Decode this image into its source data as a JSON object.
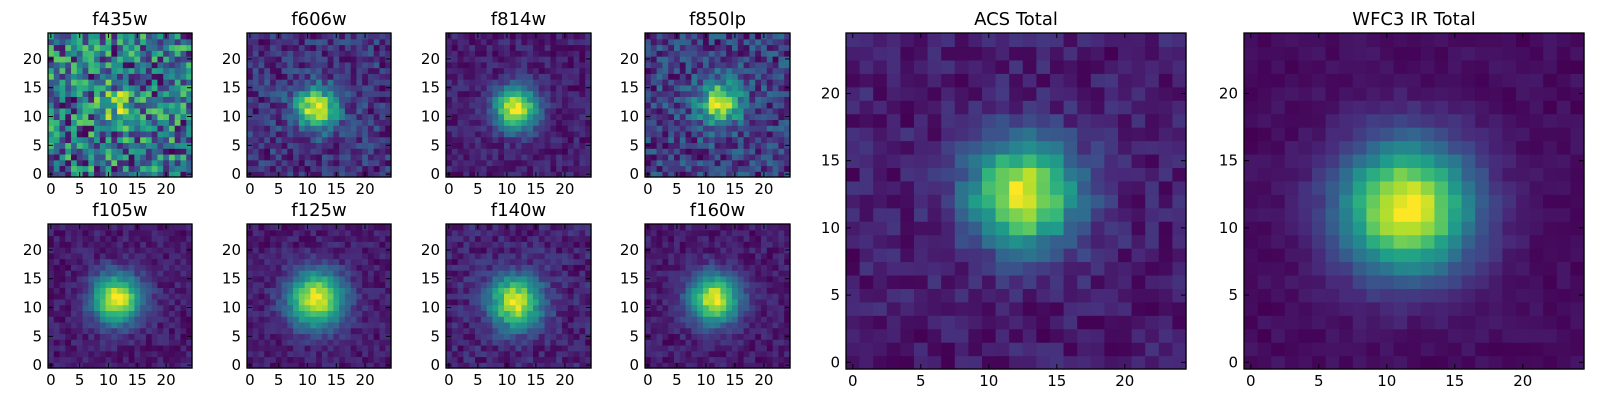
{
  "colormap": "viridis",
  "chart_data": [
    {
      "type": "heatmap",
      "title": "f435w",
      "size": 25,
      "xticks": [
        0,
        5,
        10,
        15,
        20
      ],
      "yticks": [
        0,
        5,
        10,
        15,
        20
      ],
      "xlim": [
        -0.5,
        24.5
      ],
      "ylim": [
        -0.5,
        24.5
      ],
      "grid": false,
      "peak": {
        "x": 12,
        "y": 12,
        "width": 2.5,
        "amplitude": 0.45
      },
      "background": 0.45,
      "noise": 0.55,
      "seed": 11
    },
    {
      "type": "heatmap",
      "title": "f606w",
      "size": 25,
      "xticks": [
        0,
        5,
        10,
        15,
        20
      ],
      "yticks": [
        0,
        5,
        10,
        15,
        20
      ],
      "xlim": [
        -0.5,
        24.5
      ],
      "ylim": [
        -0.5,
        24.5
      ],
      "grid": false,
      "peak": {
        "x": 11.5,
        "y": 11.5,
        "width": 2.6,
        "amplitude": 0.75
      },
      "background": 0.1,
      "noise": 0.14,
      "seed": 21
    },
    {
      "type": "heatmap",
      "title": "f814w",
      "size": 25,
      "xticks": [
        0,
        5,
        10,
        15,
        20
      ],
      "yticks": [
        0,
        5,
        10,
        15,
        20
      ],
      "xlim": [
        -0.5,
        24.5
      ],
      "ylim": [
        -0.5,
        24.5
      ],
      "grid": false,
      "peak": {
        "x": 11.5,
        "y": 11.5,
        "width": 2.6,
        "amplitude": 0.85
      },
      "background": 0.12,
      "noise": 0.08,
      "seed": 31
    },
    {
      "type": "heatmap",
      "title": "f850lp",
      "size": 25,
      "xticks": [
        0,
        5,
        10,
        15,
        20
      ],
      "yticks": [
        0,
        5,
        10,
        15,
        20
      ],
      "xlim": [
        -0.5,
        24.5
      ],
      "ylim": [
        -0.5,
        24.5
      ],
      "grid": false,
      "peak": {
        "x": 12.5,
        "y": 12.5,
        "width": 2.6,
        "amplitude": 0.7
      },
      "background": 0.15,
      "noise": 0.17,
      "seed": 41
    },
    {
      "type": "heatmap",
      "title": "f105w",
      "size": 25,
      "xticks": [
        0,
        5,
        10,
        15,
        20
      ],
      "yticks": [
        0,
        5,
        10,
        15,
        20
      ],
      "xlim": [
        -0.5,
        24.5
      ],
      "ylim": [
        -0.5,
        24.5
      ],
      "grid": false,
      "peak": {
        "x": 11.5,
        "y": 11.5,
        "width": 3.0,
        "amplitude": 0.85
      },
      "background": 0.1,
      "noise": 0.07,
      "seed": 51
    },
    {
      "type": "heatmap",
      "title": "f125w",
      "size": 25,
      "xticks": [
        0,
        5,
        10,
        15,
        20
      ],
      "yticks": [
        0,
        5,
        10,
        15,
        20
      ],
      "xlim": [
        -0.5,
        24.5
      ],
      "ylim": [
        -0.5,
        24.5
      ],
      "grid": false,
      "peak": {
        "x": 11.5,
        "y": 11.5,
        "width": 3.4,
        "amplitude": 0.85
      },
      "background": 0.12,
      "noise": 0.07,
      "seed": 61
    },
    {
      "type": "heatmap",
      "title": "f140w",
      "size": 25,
      "xticks": [
        0,
        5,
        10,
        15,
        20
      ],
      "yticks": [
        0,
        5,
        10,
        15,
        20
      ],
      "xlim": [
        -0.5,
        24.5
      ],
      "ylim": [
        -0.5,
        24.5
      ],
      "grid": false,
      "peak": {
        "x": 11.5,
        "y": 11,
        "width": 3.2,
        "amplitude": 0.8
      },
      "background": 0.14,
      "noise": 0.09,
      "seed": 71
    },
    {
      "type": "heatmap",
      "title": "f160w",
      "size": 25,
      "xticks": [
        0,
        5,
        10,
        15,
        20
      ],
      "yticks": [
        0,
        5,
        10,
        15,
        20
      ],
      "xlim": [
        -0.5,
        24.5
      ],
      "ylim": [
        -0.5,
        24.5
      ],
      "grid": false,
      "peak": {
        "x": 11.5,
        "y": 11.5,
        "width": 3.0,
        "amplitude": 0.85
      },
      "background": 0.08,
      "noise": 0.07,
      "seed": 81
    },
    {
      "type": "heatmap",
      "title": "ACS Total",
      "size": 25,
      "xticks": [
        0,
        5,
        10,
        15,
        20
      ],
      "yticks": [
        0,
        5,
        10,
        15,
        20
      ],
      "xlim": [
        -0.5,
        24.5
      ],
      "ylim": [
        -0.5,
        24.5
      ],
      "grid": false,
      "peak": {
        "x": 12.5,
        "y": 12.5,
        "width": 2.8,
        "amplitude": 0.78
      },
      "background": 0.12,
      "noise": 0.07,
      "seed": 91
    },
    {
      "type": "heatmap",
      "title": "WFC3 IR Total",
      "size": 25,
      "xticks": [
        0,
        5,
        10,
        15,
        20
      ],
      "yticks": [
        0,
        5,
        10,
        15,
        20
      ],
      "xlim": [
        -0.5,
        24.5
      ],
      "ylim": [
        -0.5,
        24.5
      ],
      "grid": false,
      "peak": {
        "x": 11.5,
        "y": 11.5,
        "width": 3.4,
        "amplitude": 0.88
      },
      "background": 0.08,
      "noise": 0.03,
      "seed": 101
    }
  ]
}
